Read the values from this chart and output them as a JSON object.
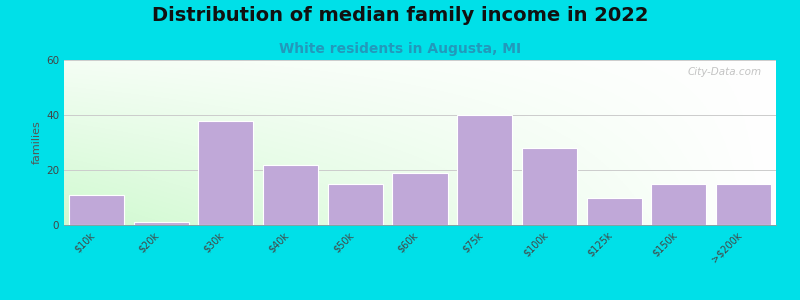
{
  "title": "Distribution of median family income in 2022",
  "subtitle": "White residents in Augusta, MI",
  "categories": [
    "$10k",
    "$20k",
    "$30k",
    "$40k",
    "$50k",
    "$60k",
    "$75k",
    "$100k",
    "$125k",
    "$150k",
    ">$200k"
  ],
  "values": [
    11,
    1,
    38,
    22,
    15,
    19,
    40,
    28,
    10,
    15,
    15
  ],
  "bar_color": "#c0a8d8",
  "bar_edge_color": "#ffffff",
  "ylim": [
    0,
    60
  ],
  "yticks": [
    0,
    20,
    40,
    60
  ],
  "ylabel": "families",
  "background_outer": "#00e0e8",
  "watermark": "City-Data.com",
  "title_fontsize": 14,
  "subtitle_fontsize": 10,
  "ylabel_fontsize": 8,
  "tick_fontsize": 7,
  "grid_color": "#cccccc",
  "bg_color_topleft": "#dff0d8",
  "bg_color_topright": "#f8f8f0",
  "bg_color_bottomleft": "#e8f5e0",
  "bg_color_bottomright": "#fafaf5"
}
